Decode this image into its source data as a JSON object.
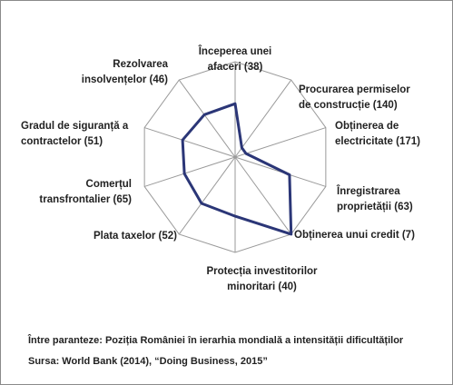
{
  "chart_data": {
    "type": "radar",
    "categories": [
      "Începerea unei afaceri (38)",
      "Procurarea permiselor de construcție (140)",
      "Obținerea de electricitate (171)",
      "Înregistrarea proprietății (63)",
      "Obținerea unui credit (7)",
      "Protecția investitorilor minoritari (40)",
      "Plata taxelor (52)",
      "Comerțul transfrontalier (65)",
      "Gradul de siguranță a contractelor (51)",
      "Rezolvarea insolvențelor (46)"
    ],
    "values": [
      0.56,
      0.12,
      0.12,
      0.6,
      1.0,
      0.62,
      0.6,
      0.56,
      0.58,
      0.55
    ],
    "rlim": [
      0,
      1
    ],
    "color": "#2b3677",
    "note": "Între paranteze: Poziția României în ierarhia mondială a intensității dificultăților",
    "source": "Sursa: World Bank (2014), “Doing Business, 2015”"
  }
}
